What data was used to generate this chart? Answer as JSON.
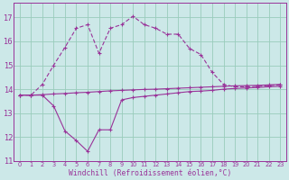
{
  "xlabel": "Windchill (Refroidissement éolien,°C)",
  "bg_color": "#cce8e8",
  "grid_color": "#99ccbb",
  "line_color": "#993399",
  "xlim": [
    -0.5,
    23.5
  ],
  "ylim": [
    11,
    17.6
  ],
  "yticks": [
    11,
    12,
    13,
    14,
    15,
    16,
    17
  ],
  "xticks": [
    0,
    1,
    2,
    3,
    4,
    5,
    6,
    7,
    8,
    9,
    10,
    11,
    12,
    13,
    14,
    15,
    16,
    17,
    18,
    19,
    20,
    21,
    22,
    23
  ],
  "line1_x": [
    0,
    1,
    2,
    3,
    4,
    5,
    6,
    7,
    8,
    9,
    10,
    11,
    12,
    13,
    14,
    15,
    16,
    17,
    18,
    19,
    20,
    21,
    22,
    23
  ],
  "line1_y": [
    13.75,
    13.75,
    13.75,
    13.3,
    12.25,
    11.85,
    11.4,
    12.3,
    12.3,
    13.55,
    13.65,
    13.7,
    13.75,
    13.8,
    13.85,
    13.9,
    13.92,
    13.95,
    14.0,
    14.03,
    14.05,
    14.07,
    14.1,
    14.12
  ],
  "line2_x": [
    0,
    1,
    2,
    3,
    4,
    5,
    6,
    7,
    8,
    9,
    10,
    11,
    12,
    13,
    14,
    15,
    16,
    17,
    18,
    19,
    20,
    21,
    22,
    23
  ],
  "line2_y": [
    13.75,
    13.75,
    14.2,
    15.0,
    15.75,
    16.55,
    16.7,
    15.5,
    16.55,
    16.7,
    17.05,
    16.7,
    16.55,
    16.3,
    16.3,
    15.7,
    15.45,
    14.7,
    14.2,
    14.1,
    14.1,
    14.12,
    14.15,
    14.18
  ],
  "line3_x": [
    0,
    1,
    2,
    3,
    4,
    5,
    6,
    7,
    8,
    9,
    10,
    11,
    12,
    13,
    14,
    15,
    16,
    17,
    18,
    19,
    20,
    21,
    22,
    23
  ],
  "line3_y": [
    13.75,
    13.75,
    13.77,
    13.8,
    13.82,
    13.85,
    13.87,
    13.9,
    13.93,
    13.95,
    13.97,
    13.99,
    14.0,
    14.02,
    14.04,
    14.06,
    14.08,
    14.1,
    14.12,
    14.14,
    14.15,
    14.16,
    14.18,
    14.2
  ]
}
